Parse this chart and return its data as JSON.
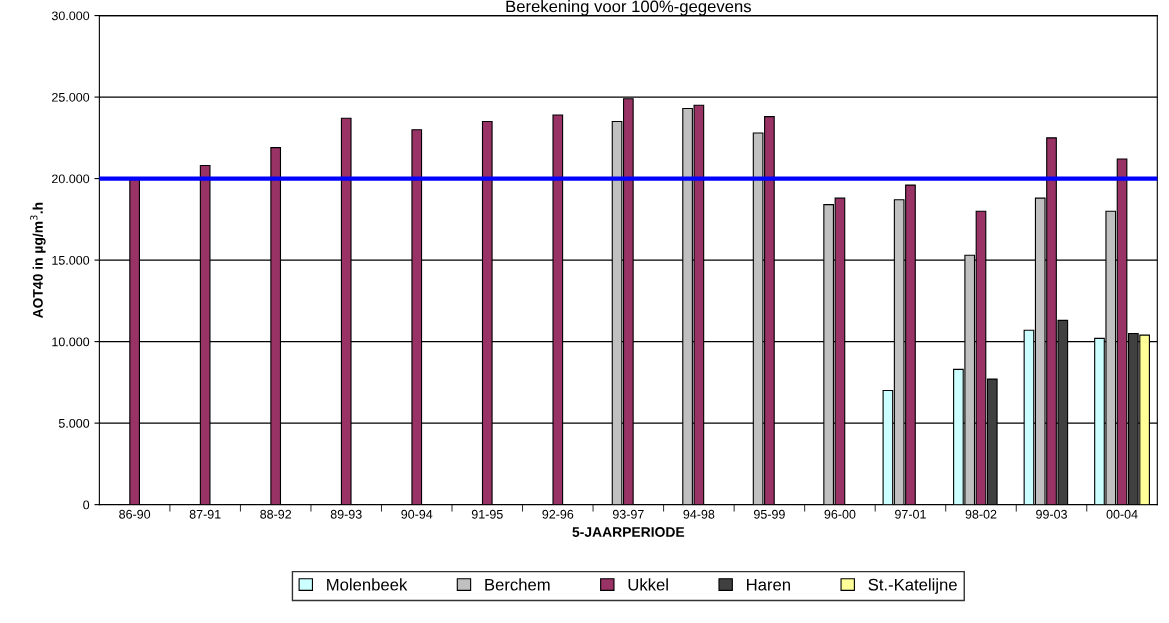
{
  "chart_data": {
    "type": "bar",
    "title": "Berekening voor 100%-gegevens",
    "xlabel": "5-JAARPERIODE",
    "ylabel": "AOT40 in µg/m$^{3}$.h",
    "categories": [
      "86-90",
      "87-91",
      "88-92",
      "89-93",
      "90-94",
      "91-95",
      "92-96",
      "93-97",
      "94-98",
      "95-99",
      "96-00",
      "97-01",
      "98-02",
      "99-03",
      "00-04"
    ],
    "series": [
      {
        "name": "Molenbeek",
        "color": "#ccffff",
        "values": [
          null,
          null,
          null,
          null,
          null,
          null,
          null,
          null,
          null,
          null,
          null,
          7000,
          8300,
          10700,
          10200
        ]
      },
      {
        "name": "Berchem",
        "color": "#c0c0c0",
        "values": [
          null,
          null,
          null,
          null,
          null,
          null,
          null,
          23500,
          24300,
          22800,
          18400,
          18700,
          15300,
          18800,
          18000
        ]
      },
      {
        "name": "Ukkel",
        "color": "#993366",
        "values": [
          20000,
          20800,
          21900,
          23700,
          23000,
          23500,
          23900,
          24900,
          24500,
          23800,
          18800,
          19600,
          18000,
          22500,
          21200
        ]
      },
      {
        "name": "Haren",
        "color": "#404040",
        "values": [
          null,
          null,
          null,
          null,
          null,
          null,
          null,
          null,
          null,
          null,
          null,
          null,
          7700,
          11300,
          10500
        ]
      },
      {
        "name": "St.-Katelijne",
        "color": "#ffff99",
        "values": [
          null,
          null,
          null,
          null,
          null,
          null,
          null,
          null,
          null,
          null,
          null,
          null,
          null,
          null,
          10400
        ]
      }
    ],
    "ylim": [
      0,
      30000
    ],
    "yticks": [
      0,
      {
        "value": 5000,
        "label": "5.000"
      },
      {
        "value": 10000,
        "label": "10.000"
      },
      {
        "value": 15000,
        "label": "15.000"
      },
      {
        "value": 20000,
        "label": "20.000"
      },
      {
        "value": 25000,
        "label": "25.000"
      },
      {
        "value": 30000,
        "label": "30.000"
      }
    ],
    "ref_lines": [
      {
        "axis": "y",
        "value": 20000,
        "color": "#0000ff"
      }
    ],
    "grid": "y",
    "legend": "bottom"
  }
}
